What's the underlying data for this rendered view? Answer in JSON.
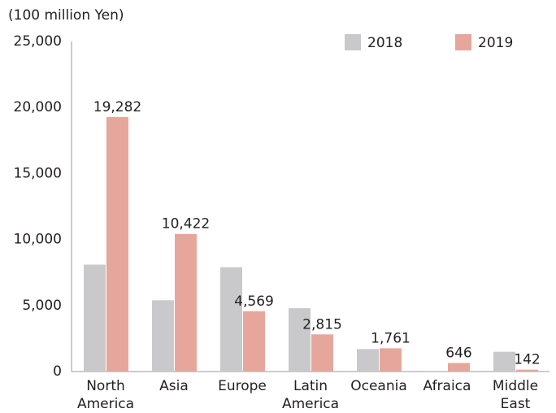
{
  "chart_data": {
    "type": "bar",
    "y_axis_label": "(100 million Yen)",
    "categories": [
      "North America",
      "Asia",
      "Europe",
      "Latin America",
      "Oceania",
      "Afraica",
      "Middle East"
    ],
    "series": [
      {
        "name": "2018",
        "color": "#c9c9cb",
        "values": [
          8100,
          5400,
          7900,
          4800,
          1700,
          50,
          1500
        ]
      },
      {
        "name": "2019",
        "color": "#e6a69c",
        "values": [
          19282,
          10422,
          4569,
          2815,
          1761,
          646,
          142
        ],
        "value_labels": [
          "19,282",
          "10,422",
          "4,569",
          "2,815",
          "1,761",
          "646",
          "142"
        ]
      }
    ],
    "ylim": [
      0,
      25000
    ],
    "yticks": [
      0,
      {
        "value": 5000,
        "label": "5,000"
      },
      {
        "value": 10000,
        "label": "10,000"
      },
      {
        "value": 15000,
        "label": "15,000"
      },
      {
        "value": 20000,
        "label": "20,000"
      },
      {
        "value": 25000,
        "label": "25,000"
      }
    ],
    "grid": false,
    "legend": "top-right"
  }
}
